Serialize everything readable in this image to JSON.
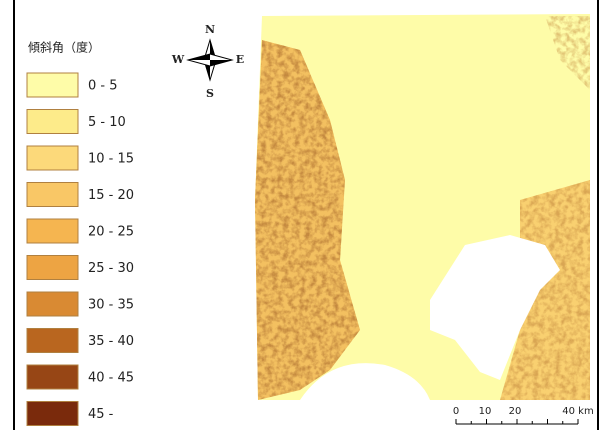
{
  "legend": {
    "title": "傾斜角（度）",
    "items": [
      {
        "label": "0 - 5",
        "color": "#fefca8"
      },
      {
        "label": "5 - 10",
        "color": "#fdeb8a"
      },
      {
        "label": "10 - 15",
        "color": "#fcd97a"
      },
      {
        "label": "15 - 20",
        "color": "#f9c766"
      },
      {
        "label": "20 - 25",
        "color": "#f5b550"
      },
      {
        "label": "25 - 30",
        "color": "#eda443"
      },
      {
        "label": "30 - 35",
        "color": "#d98a33"
      },
      {
        "label": "35 - 40",
        "color": "#b9661f"
      },
      {
        "label": "40 - 45",
        "color": "#974615"
      },
      {
        "label": "45 -",
        "color": "#7a2a0c"
      }
    ]
  },
  "compass": {
    "north": "N",
    "south": "S",
    "east": "E",
    "west": "W"
  },
  "scale_bar": {
    "labels": [
      "0",
      "10",
      "20",
      "40 km"
    ]
  }
}
